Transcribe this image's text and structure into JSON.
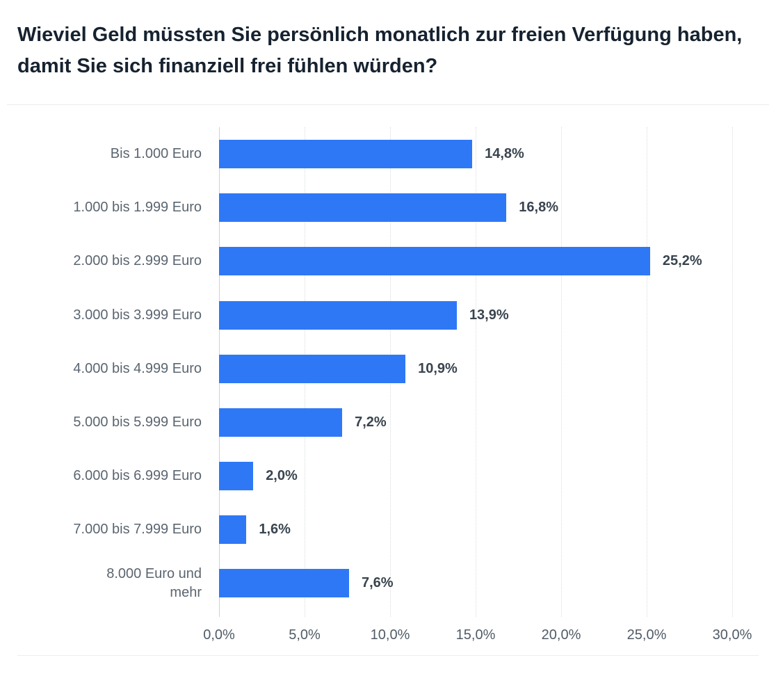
{
  "title": "Wieviel Geld müssten Sie persönlich monatlich zur freien Verfügung haben, damit Sie sich finanziell frei fühlen würden?",
  "chart_data": {
    "type": "bar",
    "orientation": "horizontal",
    "title": "Wieviel Geld müssten Sie persönlich monatlich zur freien Verfügung haben, damit Sie sich finanziell frei fühlen würden?",
    "categories": [
      "Bis 1.000 Euro",
      "1.000 bis 1.999 Euro",
      "2.000 bis 2.999 Euro",
      "3.000 bis 3.999 Euro",
      "4.000 bis 4.999 Euro",
      "5.000 bis 5.999 Euro",
      "6.000 bis 6.999 Euro",
      "7.000 bis 7.999 Euro",
      "8.000 Euro und\nmehr"
    ],
    "values": [
      14.8,
      16.8,
      25.2,
      13.9,
      10.9,
      7.2,
      2.0,
      1.6,
      7.6
    ],
    "value_labels": [
      "14,8%",
      "16,8%",
      "25,2%",
      "13,9%",
      "10,9%",
      "7,2%",
      "2,0%",
      "1,6%",
      "7,6%"
    ],
    "xlabel": "",
    "ylabel": "",
    "xlim": [
      0,
      30
    ],
    "x_tick_values": [
      0,
      5,
      10,
      15,
      20,
      25,
      30
    ],
    "x_tick_labels": [
      "0,0%",
      "5,0%",
      "10,0%",
      "15,0%",
      "20,0%",
      "25,0%",
      "30,0%"
    ],
    "grid": "vertical-dotted",
    "legend": "none",
    "bar_color": "#2e78f6",
    "label_color": "#5b6570",
    "value_label_color": "#39444f",
    "axis_label_color": "#505b66",
    "title_color": "#16222f"
  }
}
